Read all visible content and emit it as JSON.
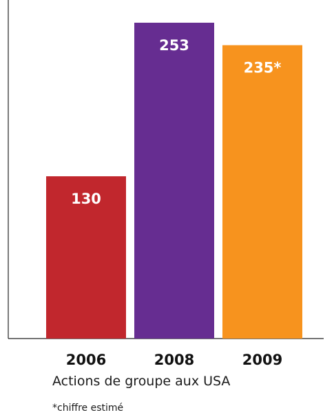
{
  "chart_data": {
    "type": "bar",
    "categories": [
      "2006",
      "2008",
      "2009"
    ],
    "values": [
      130,
      253,
      235
    ],
    "value_labels": [
      "130",
      "253",
      "235*"
    ],
    "colors": [
      "#c1272d",
      "#662d91",
      "#f7931e"
    ],
    "title": "Actions de groupe aux USA",
    "note": "*chiffre estimé",
    "xlabel": "",
    "ylabel": "",
    "ylim": [
      0,
      253
    ],
    "grid": false,
    "legend": "none"
  }
}
